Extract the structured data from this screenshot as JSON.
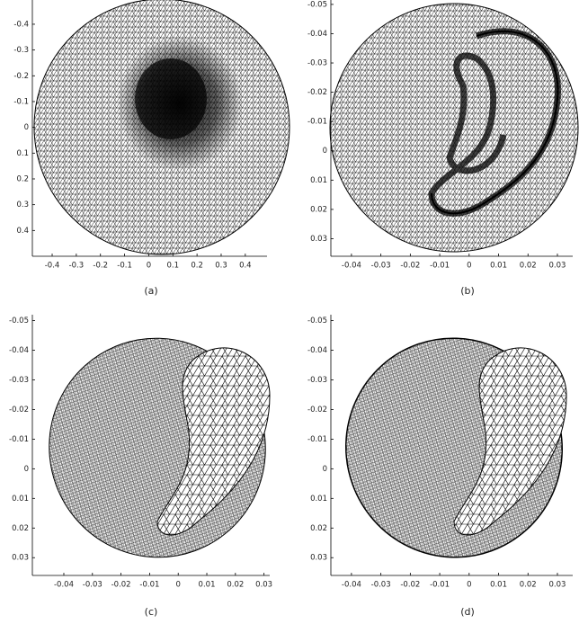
{
  "panels": [
    {
      "caption": "(a)",
      "xlim": [
        -0.482,
        0.49
      ],
      "ylim": [
        -0.494,
        0.5
      ],
      "xticks": [
        -0.4,
        -0.3,
        -0.2,
        -0.1,
        0,
        0.1,
        0.2,
        0.3,
        0.4
      ],
      "yticks": [
        -0.4,
        -0.3,
        -0.2,
        -0.1,
        0,
        0.1,
        0.2,
        0.3,
        0.4
      ]
    },
    {
      "caption": "(b)",
      "xlim": [
        -0.047,
        0.0352
      ],
      "ylim": [
        -0.0515,
        0.036
      ],
      "xticks": [
        -0.04,
        -0.03,
        -0.02,
        -0.01,
        0,
        0.01,
        0.02,
        0.03
      ],
      "yticks": [
        -0.05,
        -0.04,
        -0.03,
        -0.02,
        -0.01,
        0,
        0.01,
        0.02,
        0.03
      ]
    },
    {
      "caption": "(c)",
      "xlim": [
        -0.051,
        0.032
      ],
      "ylim": [
        -0.052,
        0.036
      ],
      "xticks": [
        -0.04,
        -0.03,
        -0.02,
        -0.01,
        0,
        0.01,
        0.02,
        0.03
      ],
      "yticks": [
        -0.05,
        -0.04,
        -0.03,
        -0.02,
        -0.01,
        0,
        0.01,
        0.02,
        0.03
      ]
    },
    {
      "caption": "(d)",
      "xlim": [
        -0.047,
        0.0352
      ],
      "ylim": [
        -0.052,
        0.036
      ],
      "xticks": [
        -0.04,
        -0.03,
        -0.02,
        -0.01,
        0,
        0.01,
        0.02,
        0.03
      ],
      "yticks": [
        -0.05,
        -0.04,
        -0.03,
        -0.02,
        -0.01,
        0,
        0.01,
        0.02,
        0.03
      ]
    }
  ]
}
